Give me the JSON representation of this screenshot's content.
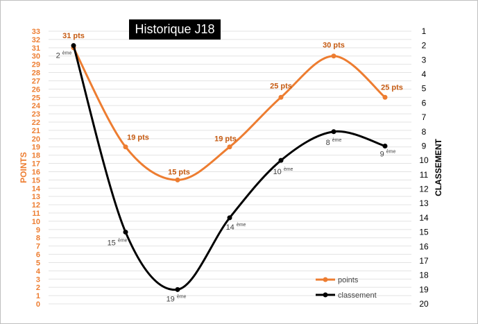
{
  "chart_data": {
    "type": "line",
    "title": "Historique J18",
    "x": [
      1,
      2,
      3,
      4,
      5,
      6,
      7
    ],
    "y_left": {
      "label": "POINTS",
      "ylim": [
        0,
        33
      ],
      "ticks": [
        0,
        1,
        2,
        3,
        4,
        5,
        6,
        7,
        8,
        9,
        10,
        11,
        12,
        13,
        14,
        15,
        16,
        17,
        18,
        19,
        20,
        21,
        22,
        23,
        24,
        25,
        26,
        27,
        28,
        29,
        30,
        31,
        32,
        33
      ]
    },
    "y_right": {
      "label": "CLASSEMENT",
      "ylim": [
        1,
        20
      ],
      "inverted": true,
      "ticks": [
        1,
        2,
        3,
        4,
        5,
        6,
        7,
        8,
        9,
        10,
        11,
        12,
        13,
        14,
        15,
        16,
        17,
        18,
        19,
        20
      ]
    },
    "series": [
      {
        "name": "points",
        "axis": "left",
        "color": "#ED7D31",
        "label_color": "#C55A11",
        "values": [
          31,
          19,
          15,
          19,
          25,
          30,
          25
        ],
        "labels": [
          "31 pts",
          "19 pts",
          "15 pts",
          "19 pts",
          "25 pts",
          "30 pts",
          "25 pts"
        ]
      },
      {
        "name": "classement",
        "axis": "right",
        "color": "#000000",
        "label_color": "#404040",
        "values": [
          2,
          15,
          19,
          14,
          10,
          8,
          9
        ],
        "labels": [
          {
            "num": "2",
            "sup": "ème"
          },
          {
            "num": "15",
            "sup": "ème"
          },
          {
            "num": "19",
            "sup": "ème"
          },
          {
            "num": "14",
            "sup": "ème"
          },
          {
            "num": "10",
            "sup": "ème"
          },
          {
            "num": "8",
            "sup": "ème"
          },
          {
            "num": "9",
            "sup": "ème"
          }
        ]
      }
    ],
    "grid": true,
    "legend": "bottom-right"
  }
}
